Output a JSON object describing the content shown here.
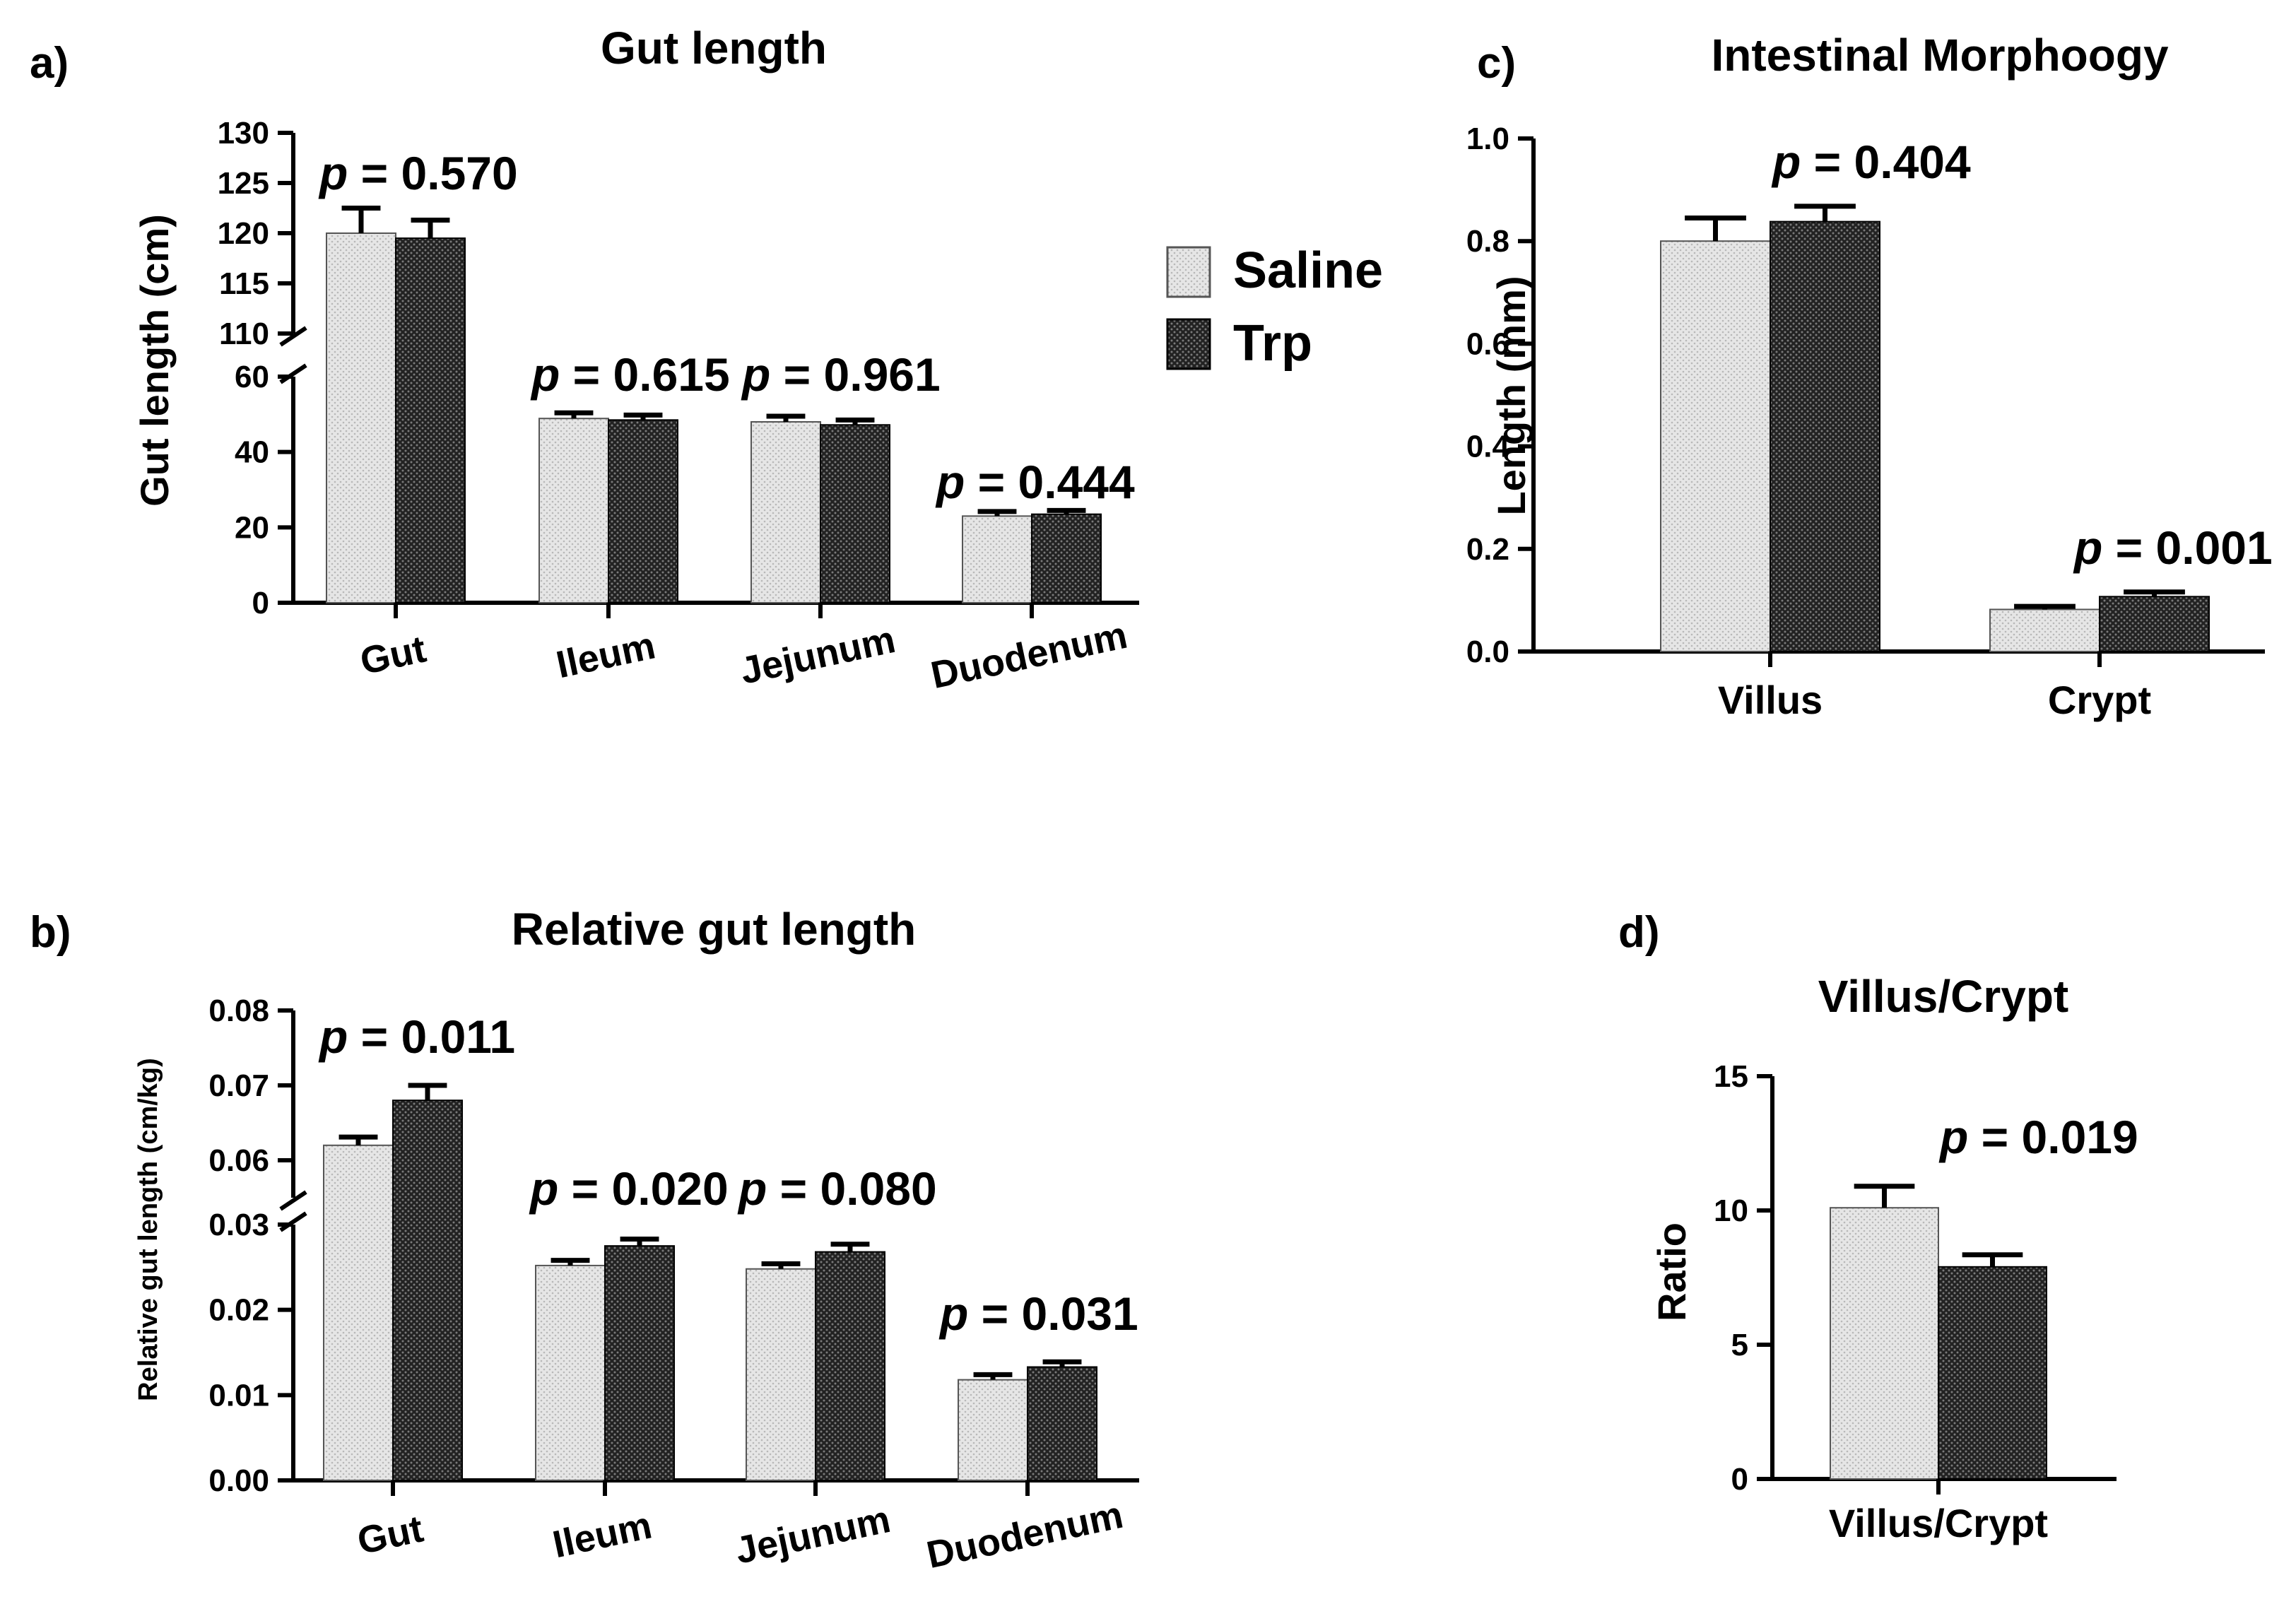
{
  "legend": {
    "entries": [
      {
        "name": "Saline",
        "pattern": "saline"
      },
      {
        "name": "Trp",
        "pattern": "trp"
      }
    ]
  },
  "colors": {
    "saline_fill": "#e6e6e6",
    "saline_dot": "#b8b8b8",
    "trp_fill": "#222222",
    "trp_dot": "#7a7a7a",
    "axis": "#000000"
  },
  "chart_data": [
    {
      "panel_label": "a)",
      "type": "bar",
      "title": "Gut length",
      "ylabel": "Gut length (cm)",
      "xlabel": "",
      "categories": [
        "Gut",
        "Ileum",
        "Jejunum",
        "Duodenum"
      ],
      "series": [
        {
          "name": "Saline",
          "values": [
            120.0,
            48.9,
            48.0,
            23.0
          ],
          "errors": [
            2.5,
            1.5,
            1.5,
            1.2
          ]
        },
        {
          "name": "Trp",
          "values": [
            119.5,
            48.5,
            47.2,
            23.5
          ],
          "errors": [
            1.8,
            1.3,
            1.3,
            1.0
          ]
        }
      ],
      "y_broken": true,
      "y_segments": [
        {
          "range": [
            0,
            60
          ],
          "ticks": [
            0,
            20,
            40,
            60
          ],
          "tick_labels": [
            "0",
            "20",
            "40",
            "60"
          ]
        },
        {
          "range": [
            110,
            130
          ],
          "ticks": [
            110,
            115,
            120,
            125,
            130
          ],
          "tick_labels": [
            "110",
            "115",
            "120",
            "125",
            "130"
          ]
        }
      ],
      "p_values": [
        {
          "prefix": "p",
          "text": " = 0.570"
        },
        {
          "prefix": "p",
          "text": " = 0.615"
        },
        {
          "prefix": "p",
          "text": " = 0.961"
        },
        {
          "prefix": "p",
          "text": " = 0.444"
        }
      ]
    },
    {
      "panel_label": "b)",
      "type": "bar",
      "title": "Relative gut length",
      "ylabel": "Relative gut length (cm/kg)",
      "xlabel": "",
      "categories": [
        "Gut",
        "Ileum",
        "Jejunum",
        "Duodenum"
      ],
      "series": [
        {
          "name": "Saline",
          "values": [
            0.062,
            0.0252,
            0.0248,
            0.0118
          ],
          "errors": [
            0.0011,
            0.0006,
            0.0006,
            0.0006
          ]
        },
        {
          "name": "Trp",
          "values": [
            0.068,
            0.0275,
            0.0268,
            0.0133
          ],
          "errors": [
            0.002,
            0.0008,
            0.0009,
            0.0006
          ]
        }
      ],
      "y_broken": true,
      "y_segments": [
        {
          "range": [
            0,
            0.03
          ],
          "ticks": [
            0,
            0.01,
            0.02,
            0.03
          ],
          "tick_labels": [
            "0.00",
            "0.01",
            "0.02",
            "0.03"
          ]
        },
        {
          "range": [
            0.055,
            0.08
          ],
          "ticks": [
            0.06,
            0.07,
            0.08
          ],
          "tick_labels": [
            "0.06",
            "0.07",
            "0.08"
          ]
        }
      ],
      "p_values": [
        {
          "prefix": "p",
          "text": " = 0.011"
        },
        {
          "prefix": "p",
          "text": " = 0.020"
        },
        {
          "prefix": "p",
          "text": " = 0.080"
        },
        {
          "prefix": "p",
          "text": " = 0.031"
        }
      ]
    },
    {
      "panel_label": "c)",
      "type": "bar",
      "title": "Intestinal Morphoogy",
      "ylabel": "Length (mm)",
      "xlabel": "",
      "categories": [
        "Villus",
        "Crypt"
      ],
      "series": [
        {
          "name": "Saline",
          "values": [
            0.8,
            0.082
          ],
          "errors": [
            0.045,
            0.006
          ]
        },
        {
          "name": "Trp",
          "values": [
            0.838,
            0.107
          ],
          "errors": [
            0.03,
            0.009
          ]
        }
      ],
      "ylim": [
        0,
        1.0
      ],
      "ticks": [
        0,
        0.2,
        0.4,
        0.6,
        0.8,
        1.0
      ],
      "tick_labels": [
        "0.0",
        "0.2",
        "0.4",
        "0.6",
        "0.8",
        "1.0"
      ],
      "p_values": [
        {
          "prefix": "p",
          "text": " = 0.404"
        },
        {
          "prefix": "p",
          "text": " = 0.001"
        }
      ]
    },
    {
      "panel_label": "d)",
      "type": "bar",
      "title": "Villus/Crypt",
      "ylabel": "Ratio",
      "xlabel": "",
      "categories": [
        "Villus/Crypt"
      ],
      "series": [
        {
          "name": "Saline",
          "values": [
            10.1
          ],
          "errors": [
            0.8
          ]
        },
        {
          "name": "Trp",
          "values": [
            7.9
          ],
          "errors": [
            0.45
          ]
        }
      ],
      "ylim": [
        0,
        15
      ],
      "ticks": [
        0,
        5,
        10,
        15
      ],
      "tick_labels": [
        "0",
        "5",
        "10",
        "15"
      ],
      "p_values": [
        {
          "prefix": "p",
          "text": " = 0.019"
        }
      ]
    }
  ]
}
